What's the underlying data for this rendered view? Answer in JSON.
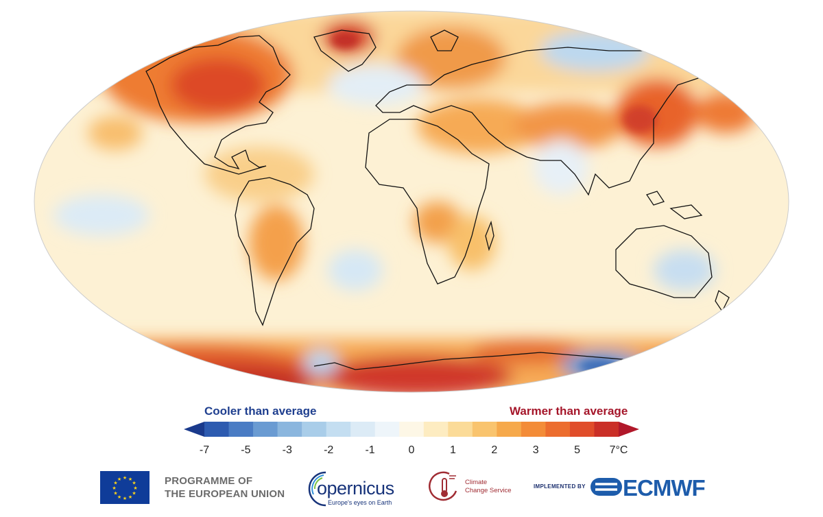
{
  "legend": {
    "cooler_label": "Cooler than average",
    "warmer_label": "Warmer than average",
    "ticks": [
      "-7",
      "-5",
      "-3",
      "-2",
      "-1",
      "0",
      "1",
      "2",
      "3",
      "5",
      "7°C"
    ],
    "colors": [
      "#1a3a8c",
      "#2d5bb0",
      "#4a7cc4",
      "#6a9bd2",
      "#8bb6de",
      "#a9cde9",
      "#c4def1",
      "#dcebf6",
      "#eef5fa",
      "#fdf7e6",
      "#fdecc1",
      "#fbdb98",
      "#f9c46e",
      "#f6a94b",
      "#f38c38",
      "#ec6d2e",
      "#e04d2a",
      "#ca2f27",
      "#b1182a"
    ]
  },
  "footer": {
    "eu_line1": "PROGRAMME OF",
    "eu_line2": "THE EUROPEAN UNION",
    "copernicus_name": "opernicus",
    "copernicus_tagline": "Europe's eyes on Earth",
    "c3s_line1": "Climate",
    "c3s_line2": "Change Service",
    "implemented_by": "IMPLEMENTED BY",
    "ecmwf": "ECMWF"
  }
}
